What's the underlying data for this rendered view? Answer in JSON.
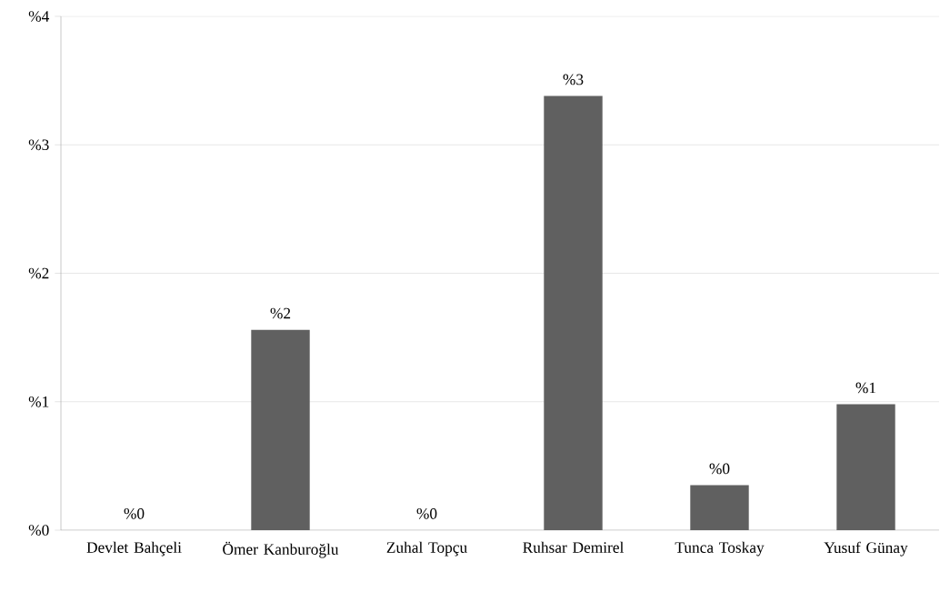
{
  "chart_data": {
    "type": "bar",
    "categories": [
      "Devlet Bahçeli",
      "Ömer Kanburoğlu",
      "Zuhal Topçu",
      "Ruhsar Demirel",
      "Tunca Toskay",
      "Yusuf Günay"
    ],
    "values": [
      0,
      1.56,
      0,
      3.38,
      0.35,
      0.98
    ],
    "value_labels": [
      "%0",
      "%2",
      "%0",
      "%3",
      "%0",
      "%1"
    ],
    "color": "#606060",
    "ylim": [
      0,
      4
    ],
    "yticks": [
      {
        "value": 0,
        "label": "%0"
      },
      {
        "value": 1,
        "label": "%1"
      },
      {
        "value": 2,
        "label": "%2"
      },
      {
        "value": 3,
        "label": "%3"
      },
      {
        "value": 4,
        "label": "%4"
      }
    ],
    "grid": "y"
  }
}
